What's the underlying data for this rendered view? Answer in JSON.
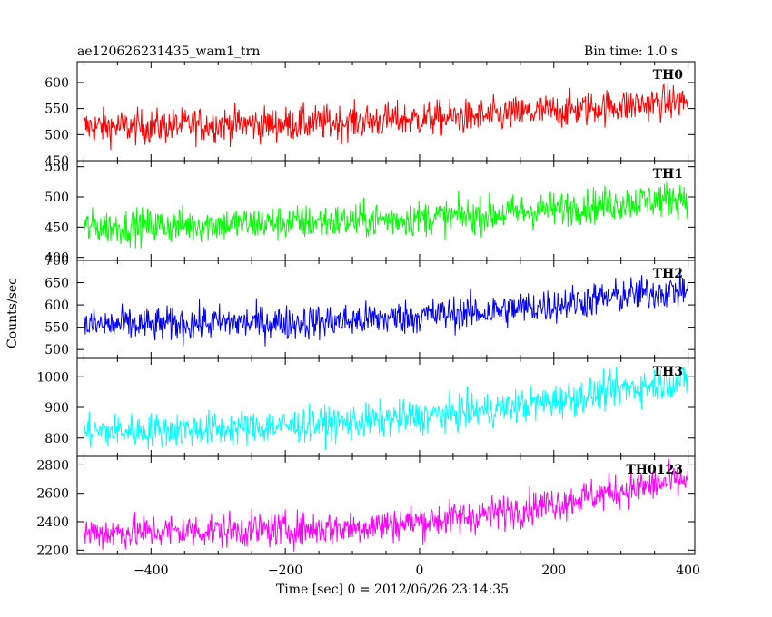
{
  "title_left": "ae120626231435_wam1_trn",
  "title_right": "Bin time: 1.0 s",
  "xlabel": "Time [sec] 0 = 2012/06/26 23:14:35",
  "ylabel": "Counts/sec",
  "chart_data": {
    "type": "line",
    "x_range": [
      -510,
      410
    ],
    "x_ticks": [
      -400,
      -200,
      0,
      200,
      400
    ],
    "x_tick_labels": [
      "−400",
      "−200",
      "0",
      "200",
      "400"
    ],
    "series": [
      {
        "name": "TH0",
        "color": "#ff0000",
        "ylim": [
          450,
          640
        ],
        "yticks": [
          450,
          500,
          550,
          600
        ],
        "x": [
          -500,
          -400,
          -300,
          -200,
          -100,
          0,
          100,
          200,
          300,
          400
        ],
        "values": [
          515,
          515,
          520,
          520,
          525,
          530,
          535,
          545,
          555,
          565
        ]
      },
      {
        "name": "TH1",
        "color": "#00ff00",
        "ylim": [
          395,
          560
        ],
        "yticks": [
          400,
          450,
          500,
          550
        ],
        "x": [
          -500,
          -400,
          -300,
          -200,
          -100,
          0,
          100,
          200,
          300,
          400
        ],
        "values": [
          450,
          452,
          455,
          457,
          460,
          465,
          470,
          480,
          490,
          500
        ]
      },
      {
        "name": "TH2",
        "color": "#0000ff",
        "ylim": [
          480,
          700
        ],
        "yticks": [
          500,
          550,
          600,
          650,
          700
        ],
        "x": [
          -500,
          -400,
          -300,
          -200,
          -100,
          0,
          100,
          200,
          300,
          400
        ],
        "values": [
          555,
          555,
          560,
          560,
          565,
          575,
          585,
          600,
          620,
          635
        ]
      },
      {
        "name": "TH3",
        "color": "#00ffff",
        "ylim": [
          740,
          1060
        ],
        "yticks": [
          800,
          900,
          1000
        ],
        "x": [
          -500,
          -400,
          -300,
          -200,
          -100,
          0,
          100,
          200,
          300,
          400
        ],
        "values": [
          820,
          825,
          830,
          840,
          850,
          870,
          890,
          920,
          960,
          990
        ]
      },
      {
        "name": "TH0123",
        "color": "#ff00ff",
        "ylim": [
          2170,
          2860
        ],
        "yticks": [
          2200,
          2400,
          2600,
          2800
        ],
        "x": [
          -500,
          -400,
          -300,
          -200,
          -100,
          0,
          100,
          200,
          300,
          400
        ],
        "values": [
          2320,
          2330,
          2340,
          2345,
          2360,
          2400,
          2450,
          2530,
          2620,
          2700
        ]
      }
    ]
  }
}
